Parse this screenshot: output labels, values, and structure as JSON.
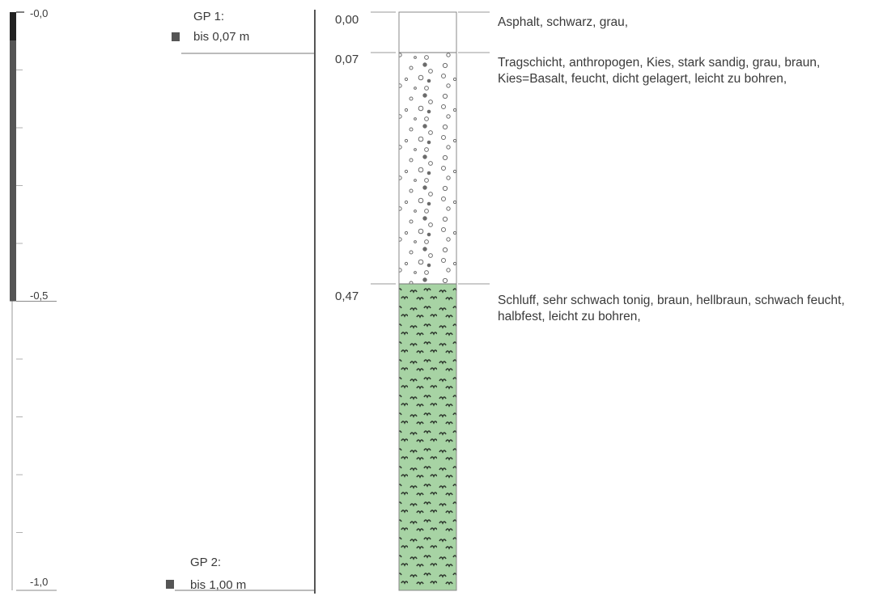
{
  "depth_scale": {
    "labels": [
      {
        "value": 0.0,
        "text": "-0,0"
      },
      {
        "value": 0.5,
        "text": "-0,5"
      },
      {
        "value": 1.0,
        "text": "-1,0"
      }
    ],
    "range": [
      0.0,
      1.0
    ],
    "minor_step": 0.1
  },
  "samples": [
    {
      "title": "GP 1:",
      "depth_text": "bis 0,07 m",
      "depth": 0.07
    },
    {
      "title": "GP 2:",
      "depth_text": "bis 1,00 m",
      "depth": 1.0
    }
  ],
  "layers": [
    {
      "top": 0.0,
      "bottom": 0.07,
      "top_label": "0,00",
      "description": "Asphalt, schwarz, grau,",
      "fill": "asphalt",
      "color": "#ffffff"
    },
    {
      "top": 0.07,
      "bottom": 0.47,
      "top_label": "0,07",
      "description": "Tragschicht, anthropogen, Kies, stark sandig, grau, braun, Kies=Basalt, feucht, dicht gelagert, leicht zu bohren,",
      "fill": "gravel",
      "color": "#ffffff"
    },
    {
      "top": 0.47,
      "bottom": 1.0,
      "top_label": "0,47",
      "description": "Schluff, sehr schwach tonig, braun, hellbraun, schwach feucht, halbfest, leicht zu bohren,",
      "fill": "silt",
      "color": "#a7d3a4"
    }
  ]
}
